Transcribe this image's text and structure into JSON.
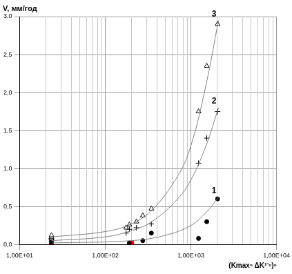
{
  "chart_data": {
    "type": "scatter",
    "y_label": "V, мм/год",
    "x_label": "(Kmaxⁿ ΔK¹⁻ⁿ)ⁿ",
    "log": "x",
    "grid": true,
    "xlim": [
      10,
      10000
    ],
    "xticks": [
      {
        "value": 10,
        "label": "1,00E+01"
      },
      {
        "value": 100,
        "label": "1,00E+02"
      },
      {
        "value": 1000,
        "label": "1,00E+03"
      },
      {
        "value": 10000,
        "label": "1,00E+04"
      }
    ],
    "ylim": [
      0,
      3
    ],
    "yticks": [
      {
        "value": 0,
        "label": "0,0"
      },
      {
        "value": 0.5,
        "label": "0,5"
      },
      {
        "value": 1,
        "label": "1,0"
      },
      {
        "value": 1.5,
        "label": "1,5"
      },
      {
        "value": 2,
        "label": "2,0"
      },
      {
        "value": 2.5,
        "label": "2,5"
      },
      {
        "value": 3,
        "label": "3,0"
      }
    ],
    "series": [
      {
        "name": "3",
        "color": "#000000",
        "marker": "triangle",
        "x": [
          23.5,
          23.5,
          23.5,
          175,
          191,
          231,
          274,
          345,
          1227,
          1531,
          2047
        ],
        "values": [
          0.08,
          0.1,
          0.12,
          0.22,
          0.26,
          0.3,
          0.38,
          0.47,
          1.75,
          2.35,
          2.9
        ],
        "curve": {
          "x": [
            23.5,
            100,
            200,
            350,
            700,
            1000,
            1500,
            2100
          ],
          "values": [
            0.1,
            0.17,
            0.27,
            0.45,
            0.9,
            1.3,
            2.1,
            2.95
          ]
        }
      },
      {
        "name": "2",
        "color": "#000000",
        "marker": "cross",
        "x": [
          23.5,
          23.5,
          175,
          191,
          231,
          345,
          1227,
          1531,
          2047
        ],
        "values": [
          0.06,
          0.08,
          0.15,
          0.2,
          0.22,
          0.27,
          1.07,
          1.4,
          1.75
        ],
        "curve": {
          "x": [
            23.5,
            100,
            200,
            350,
            700,
            1000,
            1500,
            2100
          ],
          "values": [
            0.05,
            0.1,
            0.18,
            0.3,
            0.6,
            0.85,
            1.3,
            1.8
          ]
        }
      },
      {
        "name": "1",
        "color": "#000000",
        "marker": "circle",
        "x": [
          23.5,
          23.5,
          191,
          274,
          345,
          1227,
          1531,
          2047
        ],
        "values": [
          0.02,
          0.05,
          0.02,
          0.05,
          0.15,
          0.08,
          0.3,
          0.6
        ],
        "curve": {
          "x": [
            23.5,
            200,
            500,
            1000,
            1500,
            2100
          ],
          "values": [
            0.02,
            0.05,
            0.12,
            0.25,
            0.42,
            0.62
          ]
        }
      },
      {
        "color": "#ff0000",
        "marker": "circle",
        "x": [
          23.5,
          205
        ],
        "values": [
          0.0,
          0.02
        ]
      }
    ]
  }
}
